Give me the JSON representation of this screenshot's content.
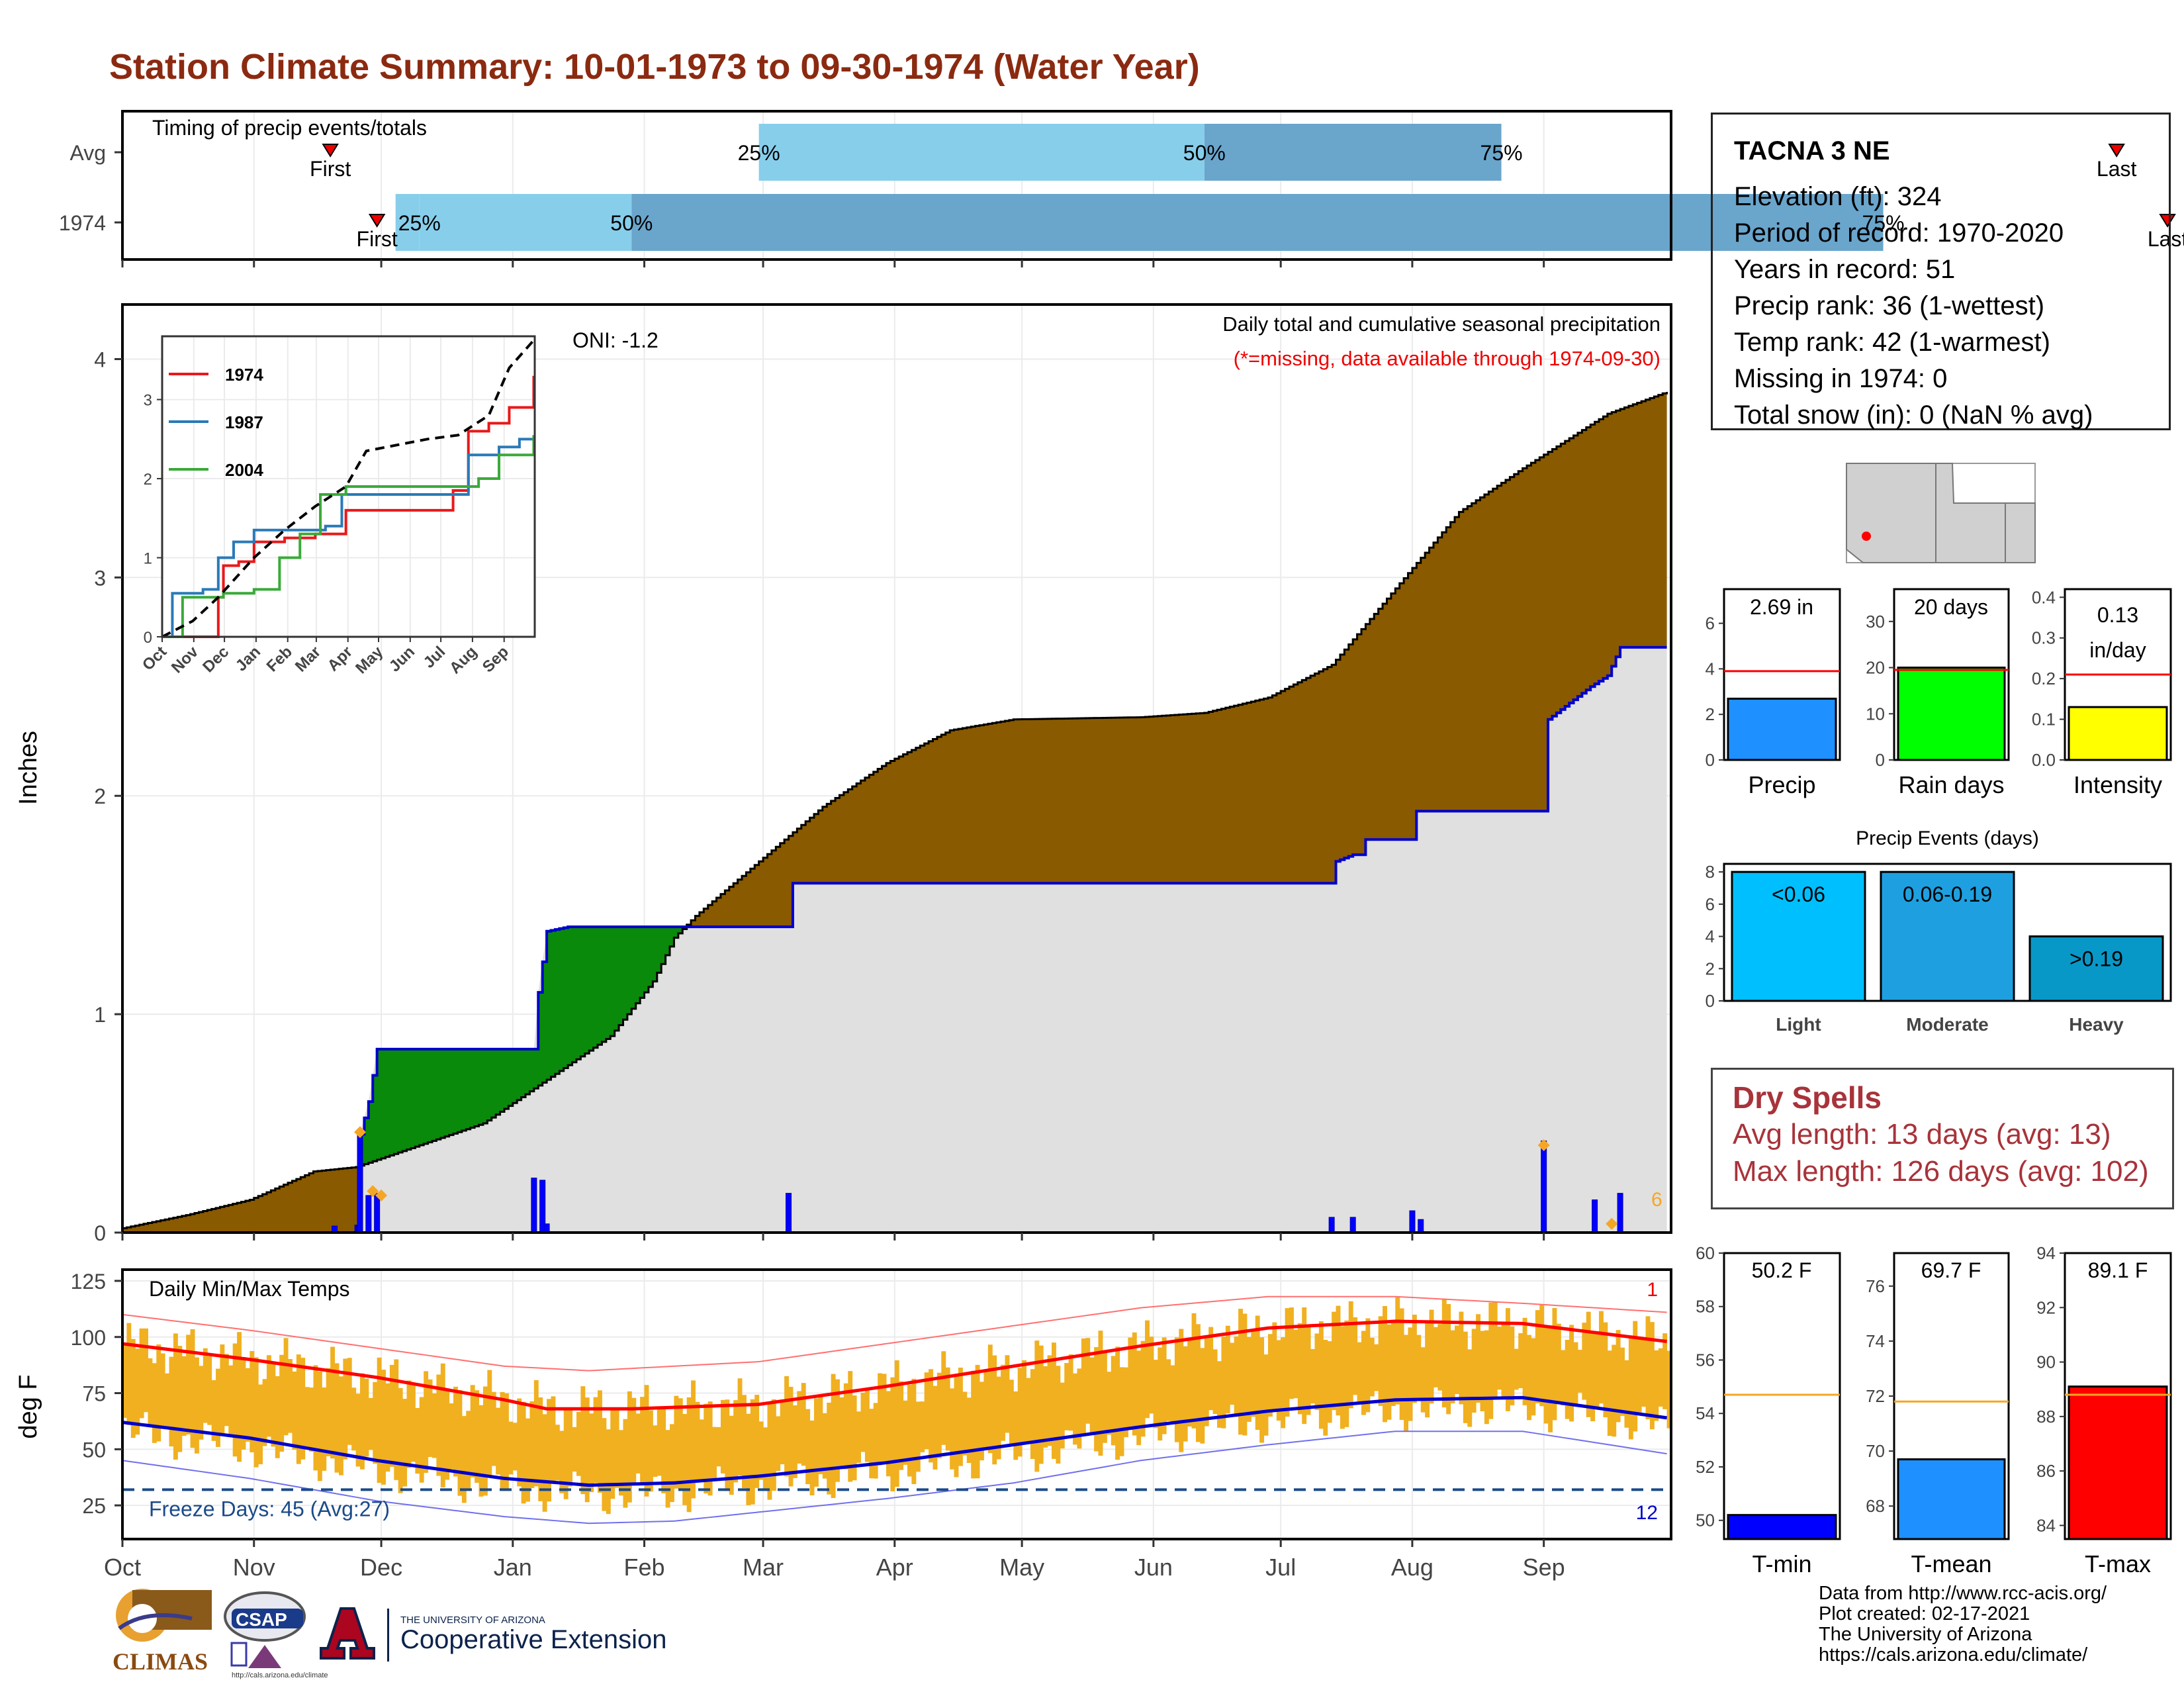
{
  "page_title": "Station Climate Summary: 10-01-1973 to 09-30-1974 (Water Year)",
  "station": {
    "name": "TACNA 3 NE",
    "lines": [
      "Elevation (ft): 324",
      "Period of record: 1970-2020",
      "Years in record: 51",
      "Precip rank: 36 (1-wettest)",
      "Temp rank: 42 (1-warmest)",
      "Missing in 1974: 0",
      "Total snow (in): 0 (NaN % avg)"
    ]
  },
  "dry_spells": {
    "title": "Dry Spells",
    "avg": "Avg length: 13 days (avg: 13)",
    "max": "Max length: 126 days (avg: 102)"
  },
  "credits": [
    "Data from http://www.rcc-acis.org/",
    "Plot created: 02-17-2021",
    "The University of Arizona",
    "https://cals.arizona.edu/climate/"
  ],
  "logos": {
    "climas": "CLIMAS",
    "csap": "CSAP",
    "csap_url": "http://cals.arizona.edu/climate",
    "ua_small": "THE UNIVERSITY OF ARIZONA",
    "ua_big": "Cooperative Extension"
  },
  "colors": {
    "dark_blue": "#0000cc",
    "brown": "#8a5a00",
    "green": "#0a8a0a",
    "gray_fill": "#e0e0e0",
    "light_blue": "#87ceeb",
    "mid_blue": "#6aa5cc",
    "orange_bar": "#f0b020",
    "title_red": "#8b2a10",
    "dry_red": "#a8333a"
  },
  "chart_data": [
    {
      "id": "timing",
      "type": "bar",
      "title": "Timing of precip events/totals",
      "rows": [
        "Avg",
        "1974"
      ],
      "first_label": "First",
      "last_label": "Last",
      "avg": {
        "first": 49,
        "p25": 150,
        "p50": 255,
        "p75": 325,
        "last": 470
      },
      "year": {
        "first": 60,
        "p25": 70,
        "p50": 120,
        "p75": 415,
        "last": 482
      },
      "percent_labels": [
        "25%",
        "50%",
        "75%"
      ]
    },
    {
      "id": "precip",
      "type": "area",
      "ylabel": "Inches",
      "ylim": [
        0,
        4.25
      ],
      "yticks": [
        0,
        1,
        2,
        3,
        4
      ],
      "note1": "Daily total and cumulative seasonal precipitation",
      "note2": "(*=missing, data available through 1974-09-30)",
      "oni": "ONI: -1.2",
      "corner_count": "6",
      "avg_cumulative": [
        [
          0,
          0.02
        ],
        [
          15,
          0.08
        ],
        [
          30,
          0.15
        ],
        [
          45,
          0.28
        ],
        [
          55,
          0.3
        ],
        [
          70,
          0.4
        ],
        [
          85,
          0.5
        ],
        [
          100,
          0.7
        ],
        [
          115,
          0.9
        ],
        [
          125,
          1.15
        ],
        [
          130,
          1.35
        ],
        [
          135,
          1.45
        ],
        [
          150,
          1.7
        ],
        [
          165,
          1.95
        ],
        [
          180,
          2.15
        ],
        [
          195,
          2.3
        ],
        [
          210,
          2.35
        ],
        [
          240,
          2.36
        ],
        [
          255,
          2.38
        ],
        [
          270,
          2.45
        ],
        [
          285,
          2.6
        ],
        [
          300,
          2.95
        ],
        [
          315,
          3.3
        ],
        [
          330,
          3.5
        ],
        [
          350,
          3.75
        ],
        [
          364,
          3.85
        ]
      ],
      "year_cumulative": [
        [
          0,
          0
        ],
        [
          54,
          0
        ],
        [
          55,
          0.03
        ],
        [
          56,
          0.45
        ],
        [
          58,
          0.6
        ],
        [
          60,
          0.84
        ],
        [
          97,
          0.84
        ],
        [
          98,
          1.1
        ],
        [
          100,
          1.38
        ],
        [
          105,
          1.4
        ],
        [
          157,
          1.4
        ],
        [
          158,
          1.6
        ],
        [
          285,
          1.6
        ],
        [
          286,
          1.7
        ],
        [
          290,
          1.73
        ],
        [
          292,
          1.73
        ],
        [
          293,
          1.8
        ],
        [
          304,
          1.8
        ],
        [
          305,
          1.93
        ],
        [
          335,
          1.93
        ],
        [
          336,
          2.35
        ],
        [
          346,
          2.5
        ],
        [
          350,
          2.55
        ],
        [
          353,
          2.68
        ],
        [
          364,
          2.68
        ]
      ],
      "daily": [
        [
          50,
          0.03
        ],
        [
          56,
          0.46
        ],
        [
          58,
          0.17
        ],
        [
          60,
          0.18
        ],
        [
          97,
          0.25
        ],
        [
          99,
          0.24
        ],
        [
          100,
          0.04
        ],
        [
          157,
          0.18
        ],
        [
          285,
          0.07
        ],
        [
          290,
          0.07
        ],
        [
          304,
          0.1
        ],
        [
          306,
          0.06
        ],
        [
          335,
          0.42
        ],
        [
          347,
          0.15
        ],
        [
          353,
          0.18
        ]
      ],
      "markers": [
        [
          56,
          0.46
        ],
        [
          59,
          0.19
        ],
        [
          61,
          0.17
        ],
        [
          335,
          0.4
        ],
        [
          351,
          0.04
        ]
      ]
    },
    {
      "id": "inset",
      "type": "line",
      "ylim": [
        0,
        3.8
      ],
      "yticks": [
        0,
        1,
        2,
        3
      ],
      "xticks": [
        "Oct",
        "Nov",
        "Dec",
        "Jan",
        "Feb",
        "Mar",
        "Apr",
        "May",
        "Jun",
        "Jul",
        "Aug",
        "Sep"
      ],
      "series": [
        {
          "name": "1974",
          "color": "#e8191b",
          "points": [
            [
              0,
              0
            ],
            [
              45,
              0
            ],
            [
              55,
              0.5
            ],
            [
              60,
              0.9
            ],
            [
              75,
              0.95
            ],
            [
              90,
              1.2
            ],
            [
              120,
              1.25
            ],
            [
              150,
              1.3
            ],
            [
              180,
              1.6
            ],
            [
              240,
              1.6
            ],
            [
              270,
              1.6
            ],
            [
              285,
              1.85
            ],
            [
              300,
              2.6
            ],
            [
              320,
              2.7
            ],
            [
              340,
              2.9
            ],
            [
              364,
              3.3
            ]
          ]
        },
        {
          "name": "1987",
          "color": "#2a7ab8",
          "points": [
            [
              0,
              0
            ],
            [
              10,
              0.55
            ],
            [
              40,
              0.6
            ],
            [
              55,
              1.0
            ],
            [
              70,
              1.2
            ],
            [
              90,
              1.35
            ],
            [
              150,
              1.35
            ],
            [
              160,
              1.4
            ],
            [
              175,
              1.4
            ],
            [
              176,
              1.8
            ],
            [
              290,
              1.8
            ],
            [
              300,
              2.3
            ],
            [
              330,
              2.4
            ],
            [
              350,
              2.5
            ],
            [
              364,
              2.55
            ]
          ]
        },
        {
          "name": "2004",
          "color": "#3aaa3a",
          "points": [
            [
              0,
              0
            ],
            [
              20,
              0.5
            ],
            [
              60,
              0.55
            ],
            [
              90,
              0.6
            ],
            [
              110,
              0.6
            ],
            [
              115,
              1.0
            ],
            [
              130,
              1.0
            ],
            [
              135,
              1.3
            ],
            [
              150,
              1.3
            ],
            [
              155,
              1.8
            ],
            [
              180,
              1.9
            ],
            [
              240,
              1.9
            ],
            [
              290,
              1.9
            ],
            [
              310,
              2.0
            ],
            [
              330,
              2.3
            ],
            [
              364,
              2.55
            ]
          ]
        },
        {
          "name": "avg",
          "color": "#000000",
          "points": [
            [
              0,
              0
            ],
            [
              30,
              0.2
            ],
            [
              55,
              0.5
            ],
            [
              90,
              1.0
            ],
            [
              120,
              1.35
            ],
            [
              150,
              1.65
            ],
            [
              180,
              1.9
            ],
            [
              200,
              2.35
            ],
            [
              220,
              2.4
            ],
            [
              260,
              2.5
            ],
            [
              290,
              2.55
            ],
            [
              320,
              2.8
            ],
            [
              340,
              3.4
            ],
            [
              364,
              3.75
            ]
          ]
        }
      ]
    },
    {
      "id": "temps",
      "type": "line",
      "title": "Daily Min/Max Temps",
      "ylabel": "deg F",
      "ylim": [
        10,
        130
      ],
      "yticks": [
        25,
        50,
        75,
        100,
        125
      ],
      "freeze_label": "Freeze Days: 45 (Avg:27)",
      "freeze_line": 32,
      "top_count": "1",
      "bottom_count": "12",
      "avg_max": [
        [
          0,
          97
        ],
        [
          30,
          90
        ],
        [
          60,
          82
        ],
        [
          90,
          72
        ],
        [
          100,
          68
        ],
        [
          120,
          68
        ],
        [
          150,
          70
        ],
        [
          180,
          78
        ],
        [
          210,
          87
        ],
        [
          240,
          96
        ],
        [
          270,
          104
        ],
        [
          300,
          107
        ],
        [
          330,
          106
        ],
        [
          364,
          98
        ]
      ],
      "avg_min": [
        [
          0,
          62
        ],
        [
          30,
          55
        ],
        [
          60,
          45
        ],
        [
          90,
          37
        ],
        [
          110,
          34
        ],
        [
          130,
          35
        ],
        [
          150,
          38
        ],
        [
          180,
          44
        ],
        [
          210,
          52
        ],
        [
          240,
          60
        ],
        [
          270,
          67
        ],
        [
          300,
          72
        ],
        [
          330,
          73
        ],
        [
          364,
          64
        ]
      ],
      "rec_max": [
        [
          0,
          110
        ],
        [
          30,
          103
        ],
        [
          60,
          95
        ],
        [
          90,
          87
        ],
        [
          110,
          85
        ],
        [
          150,
          89
        ],
        [
          180,
          97
        ],
        [
          210,
          105
        ],
        [
          240,
          113
        ],
        [
          270,
          118
        ],
        [
          300,
          118
        ],
        [
          330,
          115
        ],
        [
          364,
          111
        ]
      ],
      "rec_min": [
        [
          0,
          45
        ],
        [
          30,
          37
        ],
        [
          60,
          27
        ],
        [
          90,
          20
        ],
        [
          110,
          17
        ],
        [
          130,
          18
        ],
        [
          150,
          22
        ],
        [
          180,
          28
        ],
        [
          210,
          35
        ],
        [
          240,
          45
        ],
        [
          270,
          52
        ],
        [
          300,
          58
        ],
        [
          330,
          58
        ],
        [
          364,
          48
        ]
      ],
      "xticks": [
        "Oct",
        "Nov",
        "Dec",
        "Jan",
        "Feb",
        "Mar",
        "Apr",
        "May",
        "Jun",
        "Jul",
        "Aug",
        "Sep"
      ]
    },
    {
      "id": "precip_total",
      "type": "bar",
      "label": "Precip",
      "value": 2.69,
      "display": "2.69 in",
      "avg": 3.9,
      "ylim": [
        0,
        7.5
      ],
      "yticks": [
        0,
        2,
        4,
        6
      ],
      "color": "#1e90ff"
    },
    {
      "id": "rain_days",
      "type": "bar",
      "label": "Rain days",
      "value": 20,
      "display": "20 days",
      "avg": 19.5,
      "ylim": [
        0,
        37
      ],
      "yticks": [
        0,
        10,
        20,
        30
      ],
      "color": "#00ff00"
    },
    {
      "id": "intensity",
      "type": "bar",
      "label": "Intensity",
      "value": 0.13,
      "display": "0.13 in/day",
      "avg": 0.21,
      "ylim": [
        0,
        0.42
      ],
      "yticks": [
        0.0,
        0.1,
        0.2,
        0.3,
        0.4
      ],
      "color": "#ffff00"
    },
    {
      "id": "events",
      "type": "bar",
      "title": "Precip Events (days)",
      "categories": [
        "Light",
        "Moderate",
        "Heavy"
      ],
      "labels": [
        "<0.06",
        "0.06-0.19",
        ">0.19"
      ],
      "values": [
        8,
        8,
        4
      ],
      "colors": [
        "#00bfff",
        "#1ea0e0",
        "#0898c8"
      ],
      "ylim": [
        0,
        8.5
      ],
      "yticks": [
        0,
        2,
        4,
        6,
        8
      ]
    },
    {
      "id": "tmin",
      "type": "bar",
      "label": "T-min",
      "value": 50.2,
      "display": "50.2 F",
      "avg": 54.7,
      "ylim": [
        49.3,
        60
      ],
      "yticks": [
        50,
        52,
        54,
        56,
        58,
        60
      ],
      "color": "#0000ff"
    },
    {
      "id": "tmean",
      "type": "bar",
      "label": "T-mean",
      "value": 69.7,
      "display": "69.7 F",
      "avg": 71.8,
      "ylim": [
        66.8,
        77.2
      ],
      "yticks": [
        68,
        70,
        72,
        74,
        76
      ],
      "color": "#1e90ff"
    },
    {
      "id": "tmax",
      "type": "bar",
      "label": "T-max",
      "value": 89.1,
      "display": "89.1 F",
      "avg": 88.8,
      "ylim": [
        83.5,
        94
      ],
      "yticks": [
        84,
        86,
        88,
        90,
        92,
        94
      ],
      "color": "#ff0000"
    }
  ]
}
